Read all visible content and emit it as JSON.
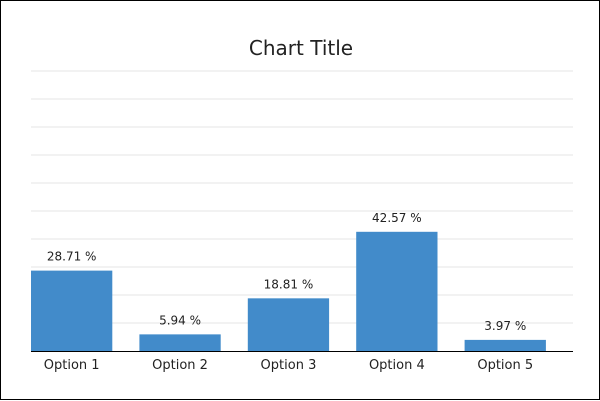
{
  "chart_data": {
    "type": "bar",
    "title": "Chart Title",
    "categories": [
      "Option 1",
      "Option 2",
      "Option 3",
      "Option 4",
      "Option 5"
    ],
    "values": [
      28.71,
      5.94,
      18.81,
      42.57,
      3.97
    ],
    "data_labels": [
      "28.71 %",
      "5.94 %",
      "18.81 %",
      "42.57 %",
      "3.97 %"
    ],
    "xlabel": "",
    "ylabel": "",
    "ylim": [
      0,
      100
    ],
    "grid": true,
    "legend": "none",
    "bar_color": "#428bca"
  }
}
